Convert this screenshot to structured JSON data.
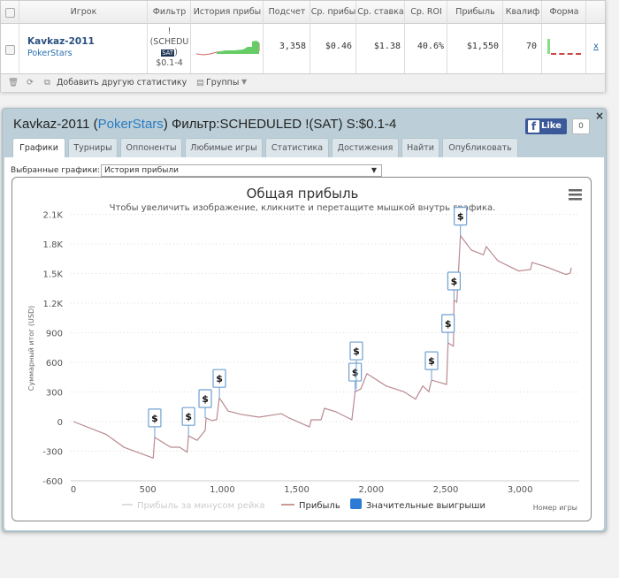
{
  "table": {
    "headers": [
      "Игрок",
      "Фильтр",
      "История прибы",
      "Подсчет",
      "Ср. прибы",
      "Ср. ставка",
      "Ср. ROI",
      "Прибыль",
      "Квалиф",
      "Форма"
    ],
    "row": {
      "player": "Kavkaz-2011",
      "site": "PokerStars",
      "filter_lines": [
        "!",
        "(SCHEDU",
        "SAT",
        ")",
        "$0.1-4"
      ],
      "count": "3,358",
      "avg_profit": "$0.46",
      "avg_stake": "$1.38",
      "roi": "40.6%",
      "profit": "$1,550",
      "qualif": "70",
      "remove": "x"
    },
    "footer": {
      "add_stat": "Добавить другую статистику",
      "groups": "Группы"
    }
  },
  "panel": {
    "title_player": "Kavkaz-2011 (",
    "title_site": "PokerStars",
    "title_rest": ") Фильтр:SCHEDULED !(SAT) S:$0.1-4",
    "like": "Like",
    "like_count": "0",
    "close": "×",
    "tabs": [
      "Графики",
      "Турниры",
      "Оппоненты",
      "Любимые игры",
      "Статистика",
      "Достижения",
      "Найти",
      "Опубликовать"
    ],
    "active_tab": 0,
    "select_label": "Выбранные графики:",
    "select_value": "История прибыли"
  },
  "colors": {
    "line": "#b88a90",
    "flag_border": "#6fa0d0",
    "legend_blue": "#2b7bd6",
    "panel": "#bccfd8"
  },
  "chart_data": {
    "type": "line",
    "title": "Общая прибыль",
    "subtitle": "Чтобы увеличить изображение, кликните и перетащите мышкой внутрь графика.",
    "xlabel": "Номер игры",
    "ylabel": "Суммарный итог (USD)",
    "xlim": [
      0,
      3358
    ],
    "ylim": [
      -600,
      2100
    ],
    "xticks": [
      "0",
      "500",
      "1,000",
      "1,500",
      "2,000",
      "2,500",
      "3,000"
    ],
    "xtick_values": [
      0,
      500,
      1000,
      1500,
      2000,
      2500,
      3000
    ],
    "yticks": [
      "2.1K",
      "1.8K",
      "1.5K",
      "1.2K",
      "900",
      "600",
      "300",
      "0",
      "-300",
      "-600"
    ],
    "ytick_values": [
      2100,
      1800,
      1500,
      1200,
      900,
      600,
      300,
      0,
      -300,
      -600
    ],
    "grid": true,
    "legend": [
      "Прибыль за минусом рейка",
      "Прибыль",
      "Значительные выигрыши"
    ],
    "legend_placement": "bottom",
    "series": [
      {
        "name": "Прибыль",
        "x": [
          0,
          220,
          339,
          536,
          546,
          653,
          713,
          764,
          773,
          831,
          885,
          891,
          932,
          962,
          980,
          1039,
          1128,
          1247,
          1396,
          1449,
          1585,
          1597,
          1663,
          1686,
          1763,
          1870,
          1892,
          1930,
          1971,
          2100,
          2218,
          2298,
          2346,
          2387,
          2405,
          2506,
          2516,
          2552,
          2556,
          2575,
          2599,
          2672,
          2753,
          2773,
          2850,
          2990,
          3070,
          3080,
          3169,
          3308,
          3337,
          3343
        ],
        "y": [
          0,
          -130,
          -260,
          -370,
          -160,
          -260,
          -260,
          -310,
          -145,
          -190,
          -90,
          36,
          10,
          20,
          240,
          107,
          72,
          45,
          80,
          36,
          -54,
          18,
          18,
          134,
          99,
          18,
          304,
          330,
          486,
          361,
          303,
          227,
          361,
          303,
          420,
          376,
          797,
          764,
          1227,
          1212,
          1884,
          1738,
          1690,
          1773,
          1630,
          1526,
          1541,
          1612,
          1571,
          1490,
          1505,
          1560
        ]
      }
    ],
    "flags": {
      "symbol": "$",
      "x": [
        546,
        773,
        885,
        980,
        1892,
        1900,
        2405,
        2516,
        2556,
        2599
      ],
      "y": [
        -160,
        -145,
        36,
        240,
        304,
        330,
        420,
        797,
        1227,
        1884
      ]
    }
  }
}
